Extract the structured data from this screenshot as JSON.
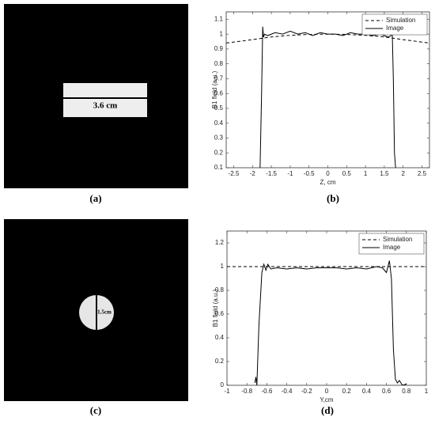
{
  "images": [
    {
      "label": "(a)",
      "annotation": "3.6 cm"
    },
    {
      "label": "(c)",
      "annotation": "1.5cm"
    }
  ],
  "chart_data": [
    {
      "type": "line",
      "panel_label": "(b)",
      "ylabel": "B1 field (a.u.)",
      "xlabel": "Z, cm",
      "xlim": [
        -2.7,
        2.7
      ],
      "xticks": [
        -2.5,
        -2,
        -1.5,
        -1,
        -0.5,
        0,
        0.5,
        1,
        1.5,
        2,
        2.5
      ],
      "ylim": [
        0.1,
        1.15
      ],
      "yticks": [
        0.1,
        0.2,
        0.3,
        0.4,
        0.5,
        0.6,
        0.7,
        0.8,
        0.9,
        1,
        1.1
      ],
      "grid": false,
      "legend": "upper right",
      "series": [
        {
          "name": "Simulation",
          "color": "#000000",
          "linestyle": "dashed",
          "x": [
            -2.7,
            -2.0,
            -1.5,
            -1.0,
            -0.5,
            0,
            0.5,
            1.0,
            1.5,
            2.0,
            2.7
          ],
          "values": [
            0.94,
            0.963,
            0.981,
            0.992,
            0.998,
            1.0,
            0.998,
            0.992,
            0.981,
            0.963,
            0.94
          ]
        },
        {
          "name": "Image",
          "color": "#000000",
          "linestyle": "solid",
          "x": [
            -1.8,
            -1.76,
            -1.73,
            -1.71,
            -1.68,
            -1.6,
            -1.4,
            -1.2,
            -1.0,
            -0.8,
            -0.6,
            -0.4,
            -0.2,
            0,
            0.2,
            0.4,
            0.6,
            0.8,
            1.0,
            1.2,
            1.4,
            1.6,
            1.68,
            1.71,
            1.74,
            1.77,
            1.8
          ],
          "values": [
            0.1,
            0.6,
            1.05,
            0.98,
            1.0,
            0.99,
            1.01,
            1.0,
            1.02,
            1.0,
            1.01,
            0.99,
            1.01,
            1.0,
            1.0,
            0.99,
            1.01,
            1.0,
            1.0,
            0.99,
            1.0,
            0.98,
            0.99,
            1.03,
            0.7,
            0.2,
            0.1
          ]
        }
      ]
    },
    {
      "type": "line",
      "panel_label": "(d)",
      "ylabel": "B1 field (a.u.)",
      "xlabel": "Y,cm",
      "xlim": [
        -1,
        1
      ],
      "xticks": [
        -1,
        -0.8,
        -0.6,
        -0.4,
        -0.2,
        0,
        0.2,
        0.4,
        0.6,
        0.8,
        1
      ],
      "ylim": [
        0,
        1.3
      ],
      "yticks": [
        0,
        0.2,
        0.4,
        0.6,
        0.8,
        1,
        1.2
      ],
      "grid": false,
      "legend": "upper right",
      "series": [
        {
          "name": "Simulation",
          "color": "#000000",
          "linestyle": "dashed",
          "x": [
            -1,
            1
          ],
          "values": [
            1,
            1
          ]
        },
        {
          "name": "Image",
          "color": "#000000",
          "linestyle": "solid",
          "x": [
            -0.72,
            -0.71,
            -0.7,
            -0.68,
            -0.65,
            -0.63,
            -0.61,
            -0.59,
            -0.56,
            -0.5,
            -0.4,
            -0.3,
            -0.2,
            -0.1,
            0,
            0.1,
            0.2,
            0.3,
            0.4,
            0.5,
            0.56,
            0.6,
            0.63,
            0.65,
            0.67,
            0.69,
            0.71,
            0.73,
            0.76,
            0.8
          ],
          "values": [
            0.02,
            0.07,
            0.0,
            0.5,
            0.95,
            1.02,
            0.97,
            1.02,
            0.98,
            0.99,
            0.98,
            0.99,
            0.98,
            0.99,
            0.99,
            0.99,
            0.98,
            0.99,
            0.98,
            1.0,
            0.99,
            0.95,
            1.05,
            0.9,
            0.3,
            0.05,
            0.02,
            0.04,
            0.0,
            0.01
          ]
        }
      ]
    }
  ]
}
